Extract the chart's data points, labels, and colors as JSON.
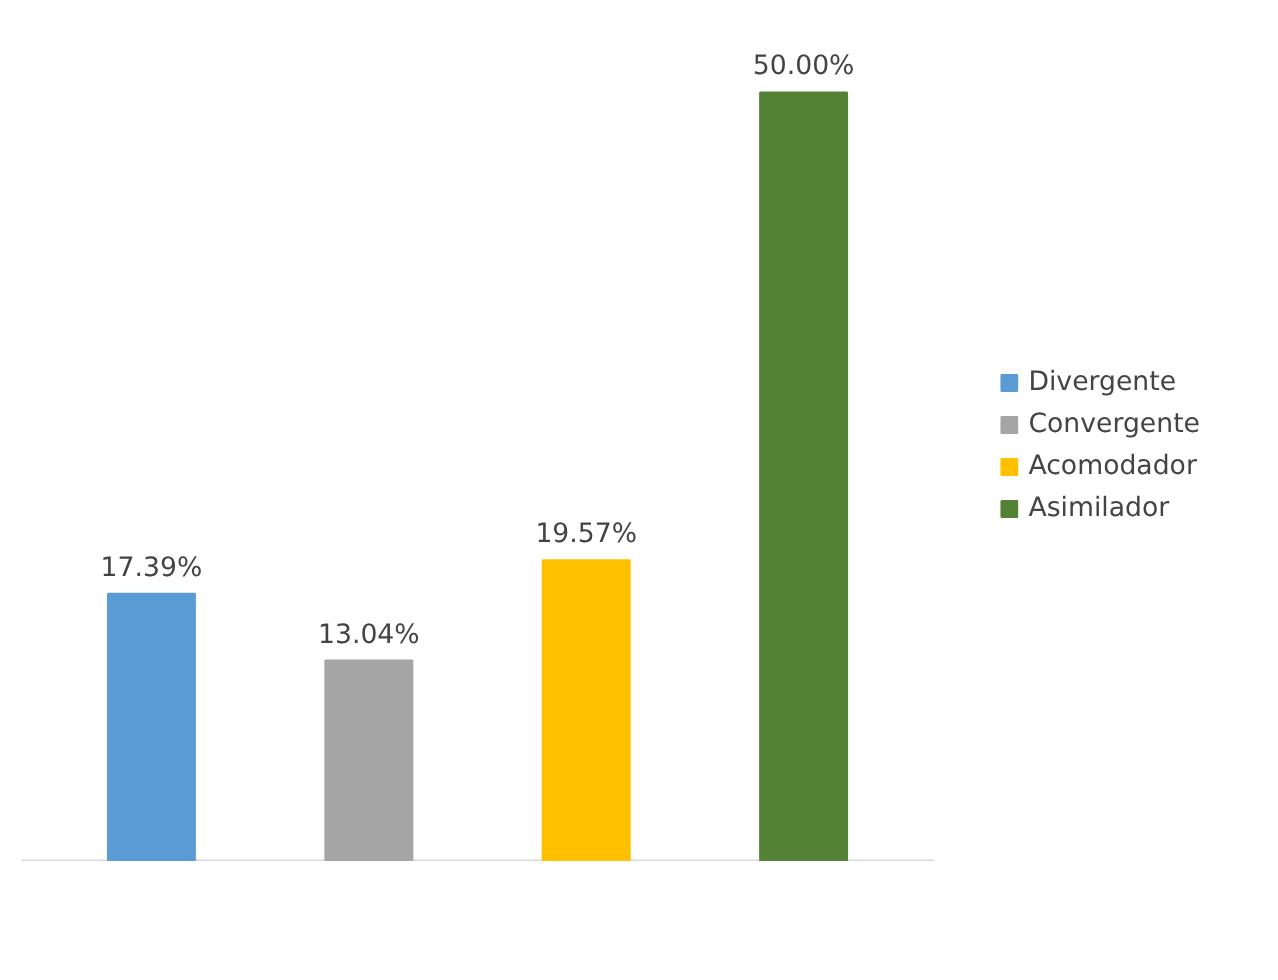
{
  "chart_data": {
    "type": "bar",
    "categories": [
      null,
      null,
      null,
      null
    ],
    "stacked": true,
    "series": [
      {
        "name": "Divergente",
        "color": "#5b9bd5",
        "values": [
          17.39,
          null,
          null,
          null
        ],
        "value_labels": [
          "17.39%",
          null,
          null,
          null
        ]
      },
      {
        "name": "Convergente",
        "color": "#a5a5a5",
        "values": [
          null,
          13.04,
          null,
          null
        ],
        "value_labels": [
          null,
          "13.04%",
          null,
          null
        ]
      },
      {
        "name": "Acomodador",
        "color": "#ffc000",
        "values": [
          null,
          null,
          19.57,
          null
        ],
        "value_labels": [
          null,
          null,
          "19.57%",
          null
        ]
      },
      {
        "name": "Asimilador",
        "color": "#548235",
        "values": [
          null,
          null,
          null,
          50.0
        ],
        "value_labels": [
          null,
          null,
          null,
          "50.00%"
        ]
      }
    ],
    "legend": "right",
    "grid": false
  }
}
